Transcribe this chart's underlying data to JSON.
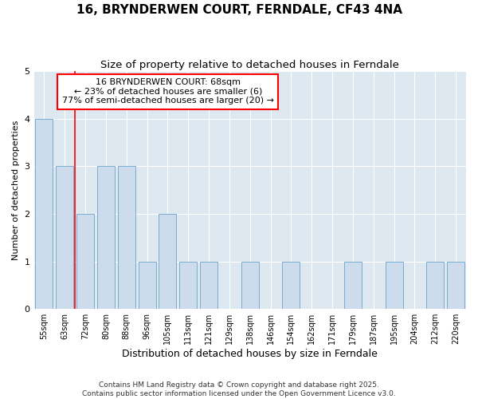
{
  "title": "16, BRYNDERWEN COURT, FERNDALE, CF43 4NA",
  "subtitle": "Size of property relative to detached houses in Ferndale",
  "xlabel": "Distribution of detached houses by size in Ferndale",
  "ylabel": "Number of detached properties",
  "categories": [
    "55sqm",
    "63sqm",
    "72sqm",
    "80sqm",
    "88sqm",
    "96sqm",
    "105sqm",
    "113sqm",
    "121sqm",
    "129sqm",
    "138sqm",
    "146sqm",
    "154sqm",
    "162sqm",
    "171sqm",
    "179sqm",
    "187sqm",
    "195sqm",
    "204sqm",
    "212sqm",
    "220sqm"
  ],
  "values": [
    4,
    3,
    2,
    3,
    3,
    1,
    2,
    1,
    1,
    0,
    1,
    0,
    1,
    0,
    0,
    1,
    0,
    1,
    0,
    1,
    1
  ],
  "bar_color": "#ccdcec",
  "bar_edge_color": "#7aabce",
  "annotation_text": "16 BRYNDERWEN COURT: 68sqm\n← 23% of detached houses are smaller (6)\n77% of semi-detached houses are larger (20) →",
  "annotation_box_color": "white",
  "annotation_box_edge_color": "red",
  "vline_x": 1.5,
  "vline_color": "red",
  "ylim": [
    0,
    5
  ],
  "yticks": [
    0,
    1,
    2,
    3,
    4,
    5
  ],
  "fig_background_color": "#ffffff",
  "plot_background": "#dde8f0",
  "grid_color": "#c0d0e0",
  "footer": "Contains HM Land Registry data © Crown copyright and database right 2025.\nContains public sector information licensed under the Open Government Licence v3.0.",
  "title_fontsize": 11,
  "subtitle_fontsize": 9.5,
  "annotation_fontsize": 8,
  "footer_fontsize": 6.5,
  "ylabel_fontsize": 8,
  "xlabel_fontsize": 9
}
